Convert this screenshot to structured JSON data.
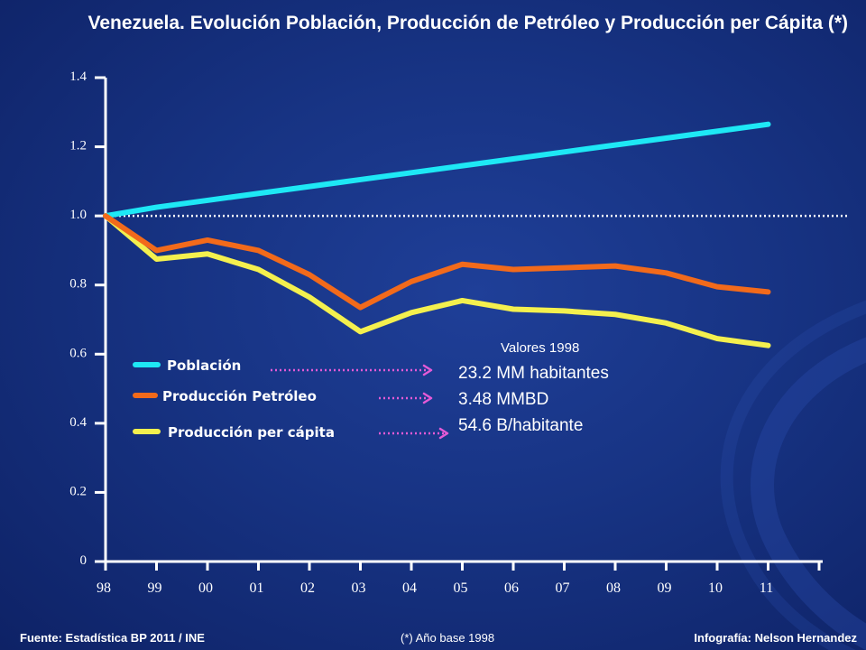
{
  "title": "Venezuela. Evolución  Población, Producción de Petróleo y Producción per Cápita (*)",
  "footer": {
    "source": "Fuente: Estadística BP 2011 / INE",
    "note": "(*) Año base 1998",
    "credit": "Infografía: Nelson Hernandez"
  },
  "annotation": {
    "heading": "Valores 1998",
    "values": [
      "23.2 MM habitantes",
      "3.48 MMBD",
      "54.6 B/habitante"
    ]
  },
  "colors": {
    "poblacion": "#1ee8f5",
    "petroleo": "#f26a1b",
    "per_capita": "#f4f04e",
    "arrows": "#e45ad6",
    "reference": "#ffffff"
  },
  "chart_data": {
    "type": "line",
    "x": [
      "98",
      "99",
      "00",
      "01",
      "02",
      "03",
      "04",
      "05",
      "06",
      "07",
      "08",
      "09",
      "10",
      "11"
    ],
    "ylim": [
      0,
      1.4
    ],
    "yticks": [
      "0",
      "0.2",
      "0.4",
      "0.6",
      "0.8",
      "1.0",
      "1.2",
      "1.4"
    ],
    "reference_line": 1.0,
    "grid": false,
    "legend_position": "center-left",
    "series": [
      {
        "name": "Población",
        "values": [
          1.0,
          1.025,
          1.045,
          1.065,
          1.085,
          1.105,
          1.125,
          1.145,
          1.165,
          1.185,
          1.205,
          1.225,
          1.245,
          1.265
        ]
      },
      {
        "name": "Producción  Petróleo",
        "values": [
          1.0,
          0.9,
          0.93,
          0.9,
          0.83,
          0.735,
          0.81,
          0.86,
          0.845,
          0.85,
          0.855,
          0.835,
          0.795,
          0.78
        ]
      },
      {
        "name": "Producción  per cápita",
        "values": [
          1.0,
          0.875,
          0.89,
          0.845,
          0.765,
          0.665,
          0.72,
          0.755,
          0.73,
          0.725,
          0.715,
          0.69,
          0.645,
          0.625
        ]
      }
    ]
  }
}
